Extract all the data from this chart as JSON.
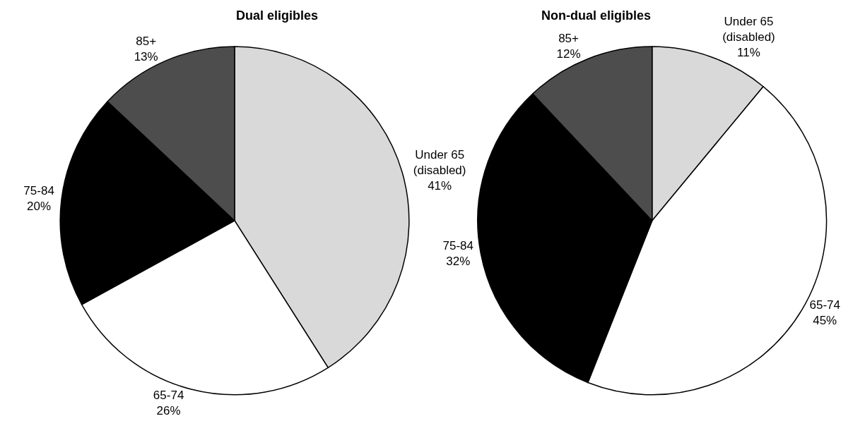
{
  "chart_data": [
    {
      "type": "pie",
      "title": "Dual eligibles",
      "categories": [
        "Under 65\n(disabled)",
        "65-74",
        "75-84",
        "85+"
      ],
      "values": [
        41,
        26,
        20,
        13
      ],
      "value_labels": [
        "41%",
        "26%",
        "20%",
        "13%"
      ],
      "colors": [
        "#d9d9d9",
        "#ffffff",
        "#000000",
        "#4d4d4d"
      ],
      "legend": false
    },
    {
      "type": "pie",
      "title": "Non-dual eligibles",
      "categories": [
        "Under 65\n(disabled)",
        "65-74",
        "75-84",
        "85+"
      ],
      "values": [
        11,
        45,
        32,
        12
      ],
      "value_labels": [
        "11%",
        "45%",
        "32%",
        "12%"
      ],
      "colors": [
        "#d9d9d9",
        "#ffffff",
        "#000000",
        "#4d4d4d"
      ],
      "legend": false
    }
  ]
}
